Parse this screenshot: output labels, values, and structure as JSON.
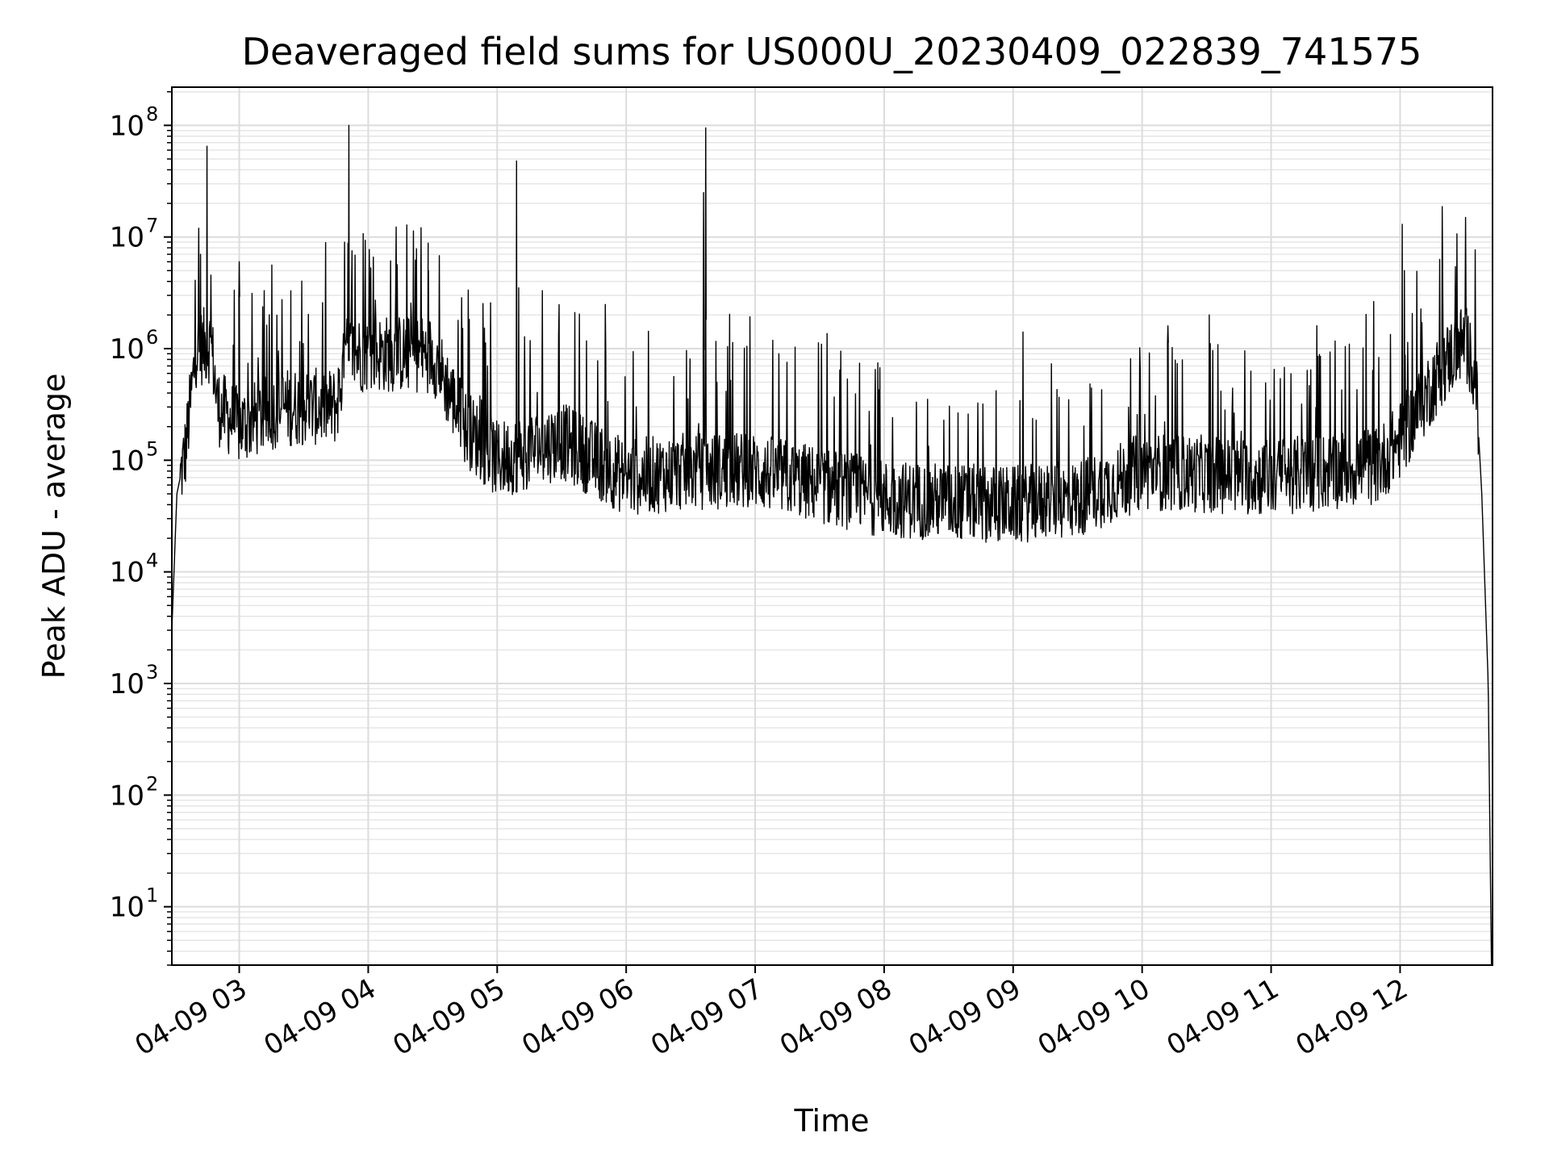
{
  "chart_data": {
    "type": "line",
    "title": "Deaveraged field sums for US000U_20230409_022839_741575",
    "xlabel": "Time",
    "ylabel": "Peak ADU - average",
    "yscale": "log",
    "ylim": [
      3,
      220000000.0
    ],
    "xlim": [
      "04-09 02:28:39",
      "04-09 12:43:00"
    ],
    "grid": true,
    "x_ticks": [
      {
        "value": "2023-04-09 03:00",
        "label": "04-09 03"
      },
      {
        "value": "2023-04-09 04:00",
        "label": "04-09 04"
      },
      {
        "value": "2023-04-09 05:00",
        "label": "04-09 05"
      },
      {
        "value": "2023-04-09 06:00",
        "label": "04-09 06"
      },
      {
        "value": "2023-04-09 07:00",
        "label": "04-09 07"
      },
      {
        "value": "2023-04-09 08:00",
        "label": "04-09 08"
      },
      {
        "value": "2023-04-09 09:00",
        "label": "04-09 09"
      },
      {
        "value": "2023-04-09 10:00",
        "label": "04-09 10"
      },
      {
        "value": "2023-04-09 11:00",
        "label": "04-09 11"
      },
      {
        "value": "2023-04-09 12:00",
        "label": "04-09 12"
      }
    ],
    "y_ticks": [
      {
        "value": 10,
        "base": "10",
        "exp": "1"
      },
      {
        "value": 100,
        "base": "10",
        "exp": "2"
      },
      {
        "value": 1000,
        "base": "10",
        "exp": "3"
      },
      {
        "value": 10000,
        "base": "10",
        "exp": "4"
      },
      {
        "value": 100000,
        "base": "10",
        "exp": "5"
      },
      {
        "value": 1000000,
        "base": "10",
        "exp": "6"
      },
      {
        "value": 10000000,
        "base": "10",
        "exp": "7"
      },
      {
        "value": 100000000,
        "base": "10",
        "exp": "8"
      }
    ],
    "series": [
      {
        "color": "#000000",
        "baseline_points": [
          {
            "x": "2023-04-09 02:28:39",
            "y": 3000
          },
          {
            "x": "2023-04-09 02:31",
            "y": 50000
          },
          {
            "x": "2023-04-09 02:35",
            "y": 120000
          },
          {
            "x": "2023-04-09 02:40",
            "y": 1000000
          },
          {
            "x": "2023-04-09 02:47",
            "y": 1100000
          },
          {
            "x": "2023-04-09 02:50",
            "y": 300000
          },
          {
            "x": "2023-04-09 03:00",
            "y": 200000
          },
          {
            "x": "2023-04-09 03:20",
            "y": 300000
          },
          {
            "x": "2023-04-09 03:45",
            "y": 300000
          },
          {
            "x": "2023-04-09 03:50",
            "y": 900000
          },
          {
            "x": "2023-04-09 04:30",
            "y": 900000
          },
          {
            "x": "2023-04-09 04:45",
            "y": 200000
          },
          {
            "x": "2023-04-09 05:00",
            "y": 100000
          },
          {
            "x": "2023-04-09 05:30",
            "y": 150000
          },
          {
            "x": "2023-04-09 06:00",
            "y": 70000
          },
          {
            "x": "2023-04-09 06:30",
            "y": 80000
          },
          {
            "x": "2023-04-09 07:00",
            "y": 80000
          },
          {
            "x": "2023-04-09 07:30",
            "y": 60000
          },
          {
            "x": "2023-04-09 08:00",
            "y": 45000
          },
          {
            "x": "2023-04-09 09:00",
            "y": 40000
          },
          {
            "x": "2023-04-09 09:30",
            "y": 45000
          },
          {
            "x": "2023-04-09 10:00",
            "y": 80000
          },
          {
            "x": "2023-04-09 11:00",
            "y": 70000
          },
          {
            "x": "2023-04-09 11:50",
            "y": 90000
          },
          {
            "x": "2023-04-09 12:00",
            "y": 150000
          },
          {
            "x": "2023-04-09 12:20",
            "y": 700000
          },
          {
            "x": "2023-04-09 12:30",
            "y": 1200000
          },
          {
            "x": "2023-04-09 12:35",
            "y": 600000
          },
          {
            "x": "2023-04-09 12:38",
            "y": 50000
          },
          {
            "x": "2023-04-09 12:41",
            "y": 1000
          },
          {
            "x": "2023-04-09 12:42:30",
            "y": 3
          }
        ],
        "spikes": [
          {
            "x": "2023-04-09 02:42",
            "y": 7000000
          },
          {
            "x": "2023-04-09 02:45",
            "y": 65000000
          },
          {
            "x": "2023-04-09 03:00",
            "y": 6000000
          },
          {
            "x": "2023-04-09 03:24",
            "y": 3300000
          },
          {
            "x": "2023-04-09 03:49",
            "y": 9000000
          },
          {
            "x": "2023-04-09 03:51",
            "y": 100000000
          },
          {
            "x": "2023-04-09 04:28",
            "y": 5000000
          },
          {
            "x": "2023-04-09 05:09",
            "y": 48000000
          },
          {
            "x": "2023-04-09 05:10",
            "y": 3500000
          },
          {
            "x": "2023-04-09 06:36",
            "y": 25000000
          },
          {
            "x": "2023-04-09 06:37",
            "y": 95000000
          },
          {
            "x": "2023-04-09 12:01",
            "y": 13000000
          },
          {
            "x": "2023-04-09 12:02",
            "y": 5000000
          },
          {
            "x": "2023-04-09 10:12",
            "y": 1600000
          },
          {
            "x": "2023-04-09 12:27",
            "y": 1500000
          }
        ]
      }
    ]
  }
}
